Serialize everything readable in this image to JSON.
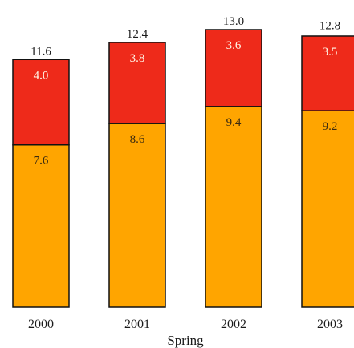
{
  "chart_data": {
    "type": "bar",
    "stacked": true,
    "categories": [
      "2000",
      "2001",
      "2002",
      "2003"
    ],
    "xlabel": "Spring",
    "series": [
      {
        "values": [
          7.6,
          8.6,
          9.4,
          9.2
        ],
        "color": "#FFA500"
      },
      {
        "values": [
          4.0,
          3.8,
          3.6,
          3.5
        ],
        "color": "#EE2A1A"
      }
    ],
    "totals": [
      11.6,
      12.4,
      13.0,
      12.8
    ],
    "ylim": [
      0,
      13.0
    ],
    "grid": false,
    "legend": "none"
  }
}
